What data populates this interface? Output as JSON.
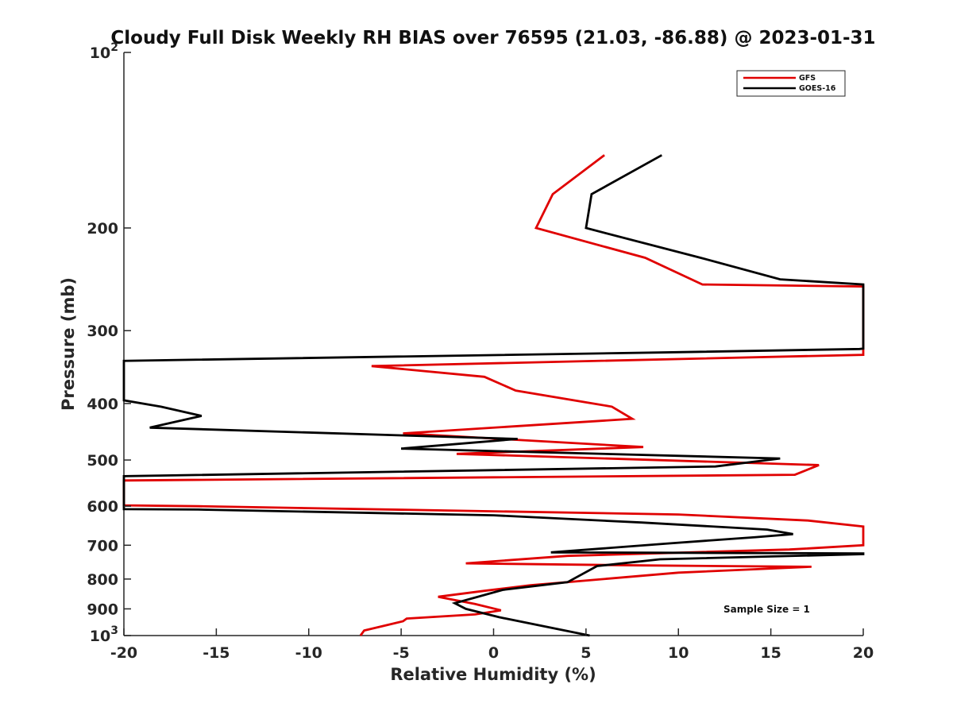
{
  "chart_data": {
    "type": "line",
    "title": "Cloudy Full Disk Weekly RH BIAS over 76595 (21.03, -86.88) @ 2023-01-31",
    "xlabel": "Relative Humidity (%)",
    "ylabel": "Pressure (mb)",
    "xlim": [
      -20,
      20
    ],
    "ylim": [
      100,
      1000
    ],
    "y_scale": "log",
    "y_reversed": true,
    "x_ticks": [
      -20,
      -15,
      -10,
      -5,
      0,
      5,
      10,
      15,
      20
    ],
    "x_tick_labels": [
      "-20",
      "-15",
      "-10",
      "-5",
      "0",
      "5",
      "10",
      "15",
      "20"
    ],
    "y_ticks": [
      {
        "value": 100,
        "base": "10",
        "exp": "2"
      },
      {
        "value": 200,
        "label": "200"
      },
      {
        "value": 300,
        "label": "300"
      },
      {
        "value": 400,
        "label": "400"
      },
      {
        "value": 500,
        "label": "500"
      },
      {
        "value": 600,
        "label": "600"
      },
      {
        "value": 700,
        "label": "700"
      },
      {
        "value": 800,
        "label": "800"
      },
      {
        "value": 900,
        "label": "900"
      },
      {
        "value": 1000,
        "base": "10",
        "exp": "3"
      }
    ],
    "legend_position": "top-right",
    "annotation": "Sample Size = 1",
    "series": [
      {
        "name": "GFS",
        "color": "#e00000",
        "points": [
          [
            6.0,
            150
          ],
          [
            3.2,
            175
          ],
          [
            2.3,
            200
          ],
          [
            8.2,
            225
          ],
          [
            11.3,
            250
          ],
          [
            20.0,
            252
          ],
          [
            20.0,
            252.5
          ],
          [
            20.0,
            330
          ],
          [
            -6.6,
            345
          ],
          [
            -0.5,
            360
          ],
          [
            1.2,
            380
          ],
          [
            6.4,
            405
          ],
          [
            7.5,
            425
          ],
          [
            -4.9,
            450
          ],
          [
            8.1,
            475
          ],
          [
            -2.0,
            488
          ],
          [
            17.6,
            510
          ],
          [
            16.3,
            530
          ],
          [
            -20.0,
            542
          ],
          [
            -20.0,
            598
          ],
          [
            -16.0,
            600
          ],
          [
            10.0,
            620
          ],
          [
            17.0,
            635
          ],
          [
            20.0,
            650
          ],
          [
            20.0,
            700
          ],
          [
            16.0,
            712
          ],
          [
            4.0,
            730
          ],
          [
            -1.5,
            752
          ],
          [
            8.0,
            758
          ],
          [
            17.2,
            762
          ],
          [
            10.0,
            780
          ],
          [
            2.0,
            820
          ],
          [
            -0.5,
            838
          ],
          [
            -3.0,
            858
          ],
          [
            -1.0,
            883
          ],
          [
            0.4,
            905
          ],
          [
            -1.0,
            920
          ],
          [
            -4.7,
            935
          ],
          [
            -4.9,
            945
          ],
          [
            -5.8,
            960
          ],
          [
            -7.0,
            980
          ],
          [
            -7.2,
            1000
          ]
        ]
      },
      {
        "name": "GOES-16",
        "color": "#000000",
        "points": [
          [
            9.1,
            150
          ],
          [
            5.3,
            175
          ],
          [
            5.0,
            200
          ],
          [
            11.2,
            225
          ],
          [
            15.5,
            245
          ],
          [
            20.0,
            250
          ],
          [
            20.0,
            250.5
          ],
          [
            20.0,
            322
          ],
          [
            19.8,
            322.5
          ],
          [
            9.0,
            327
          ],
          [
            -20.0,
            338
          ],
          [
            -20.0,
            395
          ],
          [
            -18.0,
            405
          ],
          [
            -15.8,
            420
          ],
          [
            -18.6,
            440
          ],
          [
            1.3,
            460
          ],
          [
            -5.0,
            478
          ],
          [
            15.5,
            497
          ],
          [
            12.0,
            513
          ],
          [
            -20.0,
            533
          ],
          [
            -20.0,
            607
          ],
          [
            -16.0,
            608
          ],
          [
            0.0,
            622
          ],
          [
            8.0,
            640
          ],
          [
            14.8,
            658
          ],
          [
            16.2,
            670
          ],
          [
            14.2,
            678
          ],
          [
            9.5,
            695
          ],
          [
            3.1,
            720
          ],
          [
            20.0,
            723
          ],
          [
            20.0,
            725
          ],
          [
            9.0,
            740
          ],
          [
            5.6,
            760
          ],
          [
            4.0,
            810
          ],
          [
            0.5,
            835
          ],
          [
            -2.1,
            880
          ],
          [
            -1.5,
            900
          ],
          [
            0.3,
            930
          ],
          [
            5.2,
            1000
          ]
        ]
      }
    ]
  }
}
